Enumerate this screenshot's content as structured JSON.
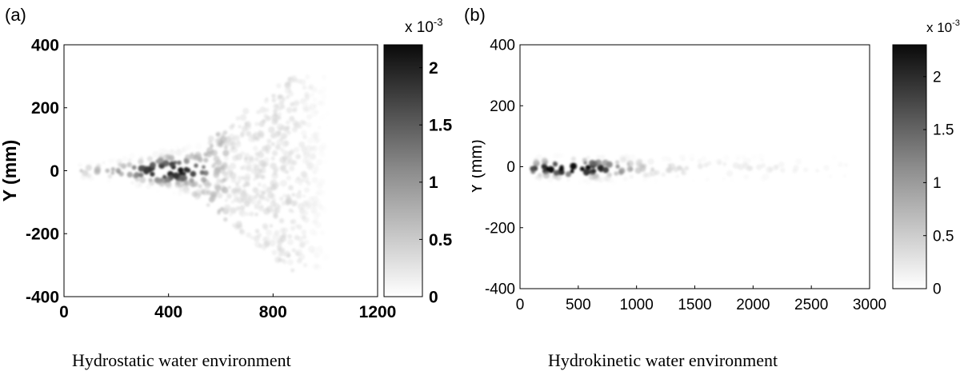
{
  "panels": [
    {
      "label": "(a)",
      "caption": "Hydrostatic water environment",
      "chart_data": {
        "type": "heatmap",
        "title": "",
        "xlabel": "",
        "ylabel": "Y (mm)",
        "xlim": [
          0,
          1200
        ],
        "ylim": [
          -400,
          400
        ],
        "xticks": [
          "0",
          "400",
          "800",
          "1200"
        ],
        "yticks": [
          "400",
          "200",
          "0",
          "-200",
          "-400"
        ],
        "colorbar": {
          "exponent_label": "x 10",
          "exponent": "-3",
          "range": [
            0,
            2.2
          ],
          "ticks": [
            "2",
            "1.5",
            "1",
            "0.5",
            "0"
          ],
          "colormap": "white-to-black"
        },
        "description_shape": "narrow dense core near x=200-520 widening into a diffuse fan up to about x=1000 spanning y≈-320 to 300"
      }
    },
    {
      "label": "(b)",
      "caption": "Hydrokinetic water environment",
      "chart_data": {
        "type": "heatmap",
        "title": "",
        "xlabel": "",
        "ylabel": "Y (mm)",
        "xlim": [
          0,
          3000
        ],
        "ylim": [
          -400,
          400
        ],
        "xticks": [
          "0",
          "500",
          "1000",
          "1500",
          "2000",
          "2500",
          "3000"
        ],
        "yticks": [
          "400",
          "200",
          "0",
          "-200",
          "-400"
        ],
        "colorbar": {
          "exponent_label": "x 10",
          "exponent": "-3",
          "range": [
            0,
            2.3
          ],
          "ticks": [
            "2",
            "1.5",
            "1",
            "0.5",
            "0"
          ],
          "colormap": "white-to-black"
        },
        "description_shape": "dense core near x=150-800 thinning to a sparse streak along y≈0 out to about x=2800"
      }
    }
  ]
}
